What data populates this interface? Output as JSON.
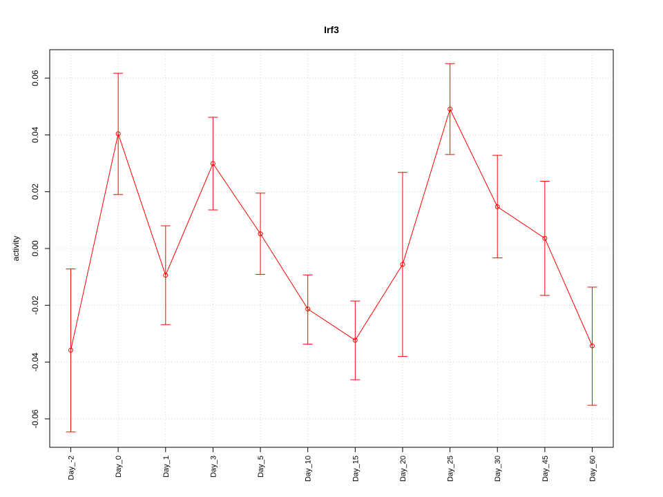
{
  "chart_data": {
    "type": "line",
    "title": "Irf3",
    "xlabel": "",
    "ylabel": "activity",
    "categories": [
      "Day_-2",
      "Day_0",
      "Day_1",
      "Day_3",
      "Day_5",
      "Day_10",
      "Day_15",
      "Day_20",
      "Day_25",
      "Day_30",
      "Day_45",
      "Day_60"
    ],
    "series": [
      {
        "values": [
          -0.0358,
          0.0404,
          -0.0094,
          0.0299,
          0.0052,
          -0.0213,
          -0.0323,
          -0.0056,
          0.0491,
          0.0147,
          0.0036,
          -0.0343
        ],
        "upper": [
          -0.0072,
          0.0617,
          0.008,
          0.0462,
          0.0195,
          -0.0093,
          -0.0185,
          0.0268,
          0.0651,
          0.0328,
          0.0237,
          -0.0136
        ],
        "lower": [
          -0.0646,
          0.019,
          -0.0268,
          0.0136,
          -0.0091,
          -0.0337,
          -0.0462,
          -0.038,
          0.0331,
          -0.0033,
          -0.0165,
          -0.0552
        ],
        "color": "#ff0000"
      }
    ],
    "ylim": [
      -0.07,
      0.07
    ],
    "yticks": [
      -0.06,
      -0.04,
      -0.02,
      0.0,
      0.02,
      0.04,
      0.06
    ],
    "ytick_labels": [
      "-0.06",
      "-0.04",
      "-0.02",
      "0.00",
      "0.02",
      "0.04",
      "0.06"
    ],
    "grid": true,
    "grid_color": "#d3d3d3",
    "axis_color": "#000000"
  }
}
